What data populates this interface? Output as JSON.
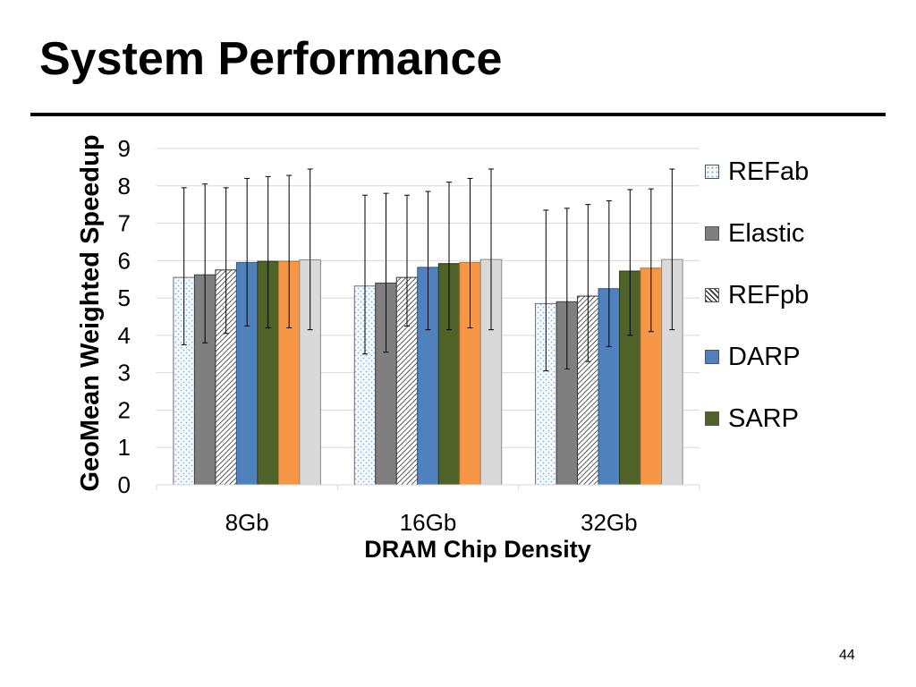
{
  "slide": {
    "title": "System Performance",
    "page_number": "44"
  },
  "colors": {
    "REFab": "#dbe9f6",
    "Elastic": "#7f7f7f",
    "REFpb": "#ffffff",
    "DARP": "#4f81bd",
    "SARP": "#4f6228",
    "series6": "#f79646",
    "series7": "#d9d9d9"
  },
  "legend": [
    {
      "name": "REFab",
      "pattern": "dots"
    },
    {
      "name": "Elastic",
      "pattern": "solid"
    },
    {
      "name": "REFpb",
      "pattern": "hatch"
    },
    {
      "name": "DARP",
      "pattern": "solid"
    },
    {
      "name": "SARP",
      "pattern": "solid"
    }
  ],
  "chart_data": {
    "type": "bar",
    "xlabel": "DRAM Chip Density",
    "ylabel": "GeoMean Weighted Speedup",
    "categories": [
      "8Gb",
      "16Gb",
      "32Gb"
    ],
    "ylim": [
      0,
      9
    ],
    "yticks": [
      "0",
      "1",
      "2",
      "3",
      "4",
      "5",
      "6",
      "7",
      "8",
      "9"
    ],
    "grid": true,
    "legend_position": "right",
    "series": [
      {
        "name": "REFab",
        "values": [
          5.55,
          5.32,
          4.85
        ],
        "err_low": [
          3.75,
          3.5,
          3.05
        ],
        "err_high": [
          7.95,
          7.75,
          7.35
        ]
      },
      {
        "name": "Elastic",
        "values": [
          5.62,
          5.4,
          4.9
        ],
        "err_low": [
          3.8,
          3.55,
          3.1
        ],
        "err_high": [
          8.05,
          7.8,
          7.4
        ]
      },
      {
        "name": "REFpb",
        "values": [
          5.75,
          5.55,
          5.05
        ],
        "err_low": [
          4.05,
          4.25,
          3.3
        ],
        "err_high": [
          7.95,
          7.75,
          7.5
        ]
      },
      {
        "name": "DARP",
        "values": [
          5.95,
          5.82,
          5.25
        ],
        "err_low": [
          4.25,
          4.15,
          3.7
        ],
        "err_high": [
          8.2,
          7.85,
          7.6
        ]
      },
      {
        "name": "SARP",
        "values": [
          5.98,
          5.92,
          5.72
        ],
        "err_low": [
          4.2,
          4.15,
          4.0
        ],
        "err_high": [
          8.25,
          8.1,
          7.9
        ]
      },
      {
        "values": [
          5.98,
          5.95,
          5.8
        ],
        "err_low": [
          4.2,
          4.2,
          4.1
        ],
        "err_high": [
          8.28,
          8.2,
          7.92
        ]
      },
      {
        "values": [
          6.02,
          6.03,
          6.03
        ],
        "err_low": [
          4.15,
          4.15,
          4.15
        ],
        "err_high": [
          8.45,
          8.45,
          8.45
        ]
      }
    ]
  }
}
